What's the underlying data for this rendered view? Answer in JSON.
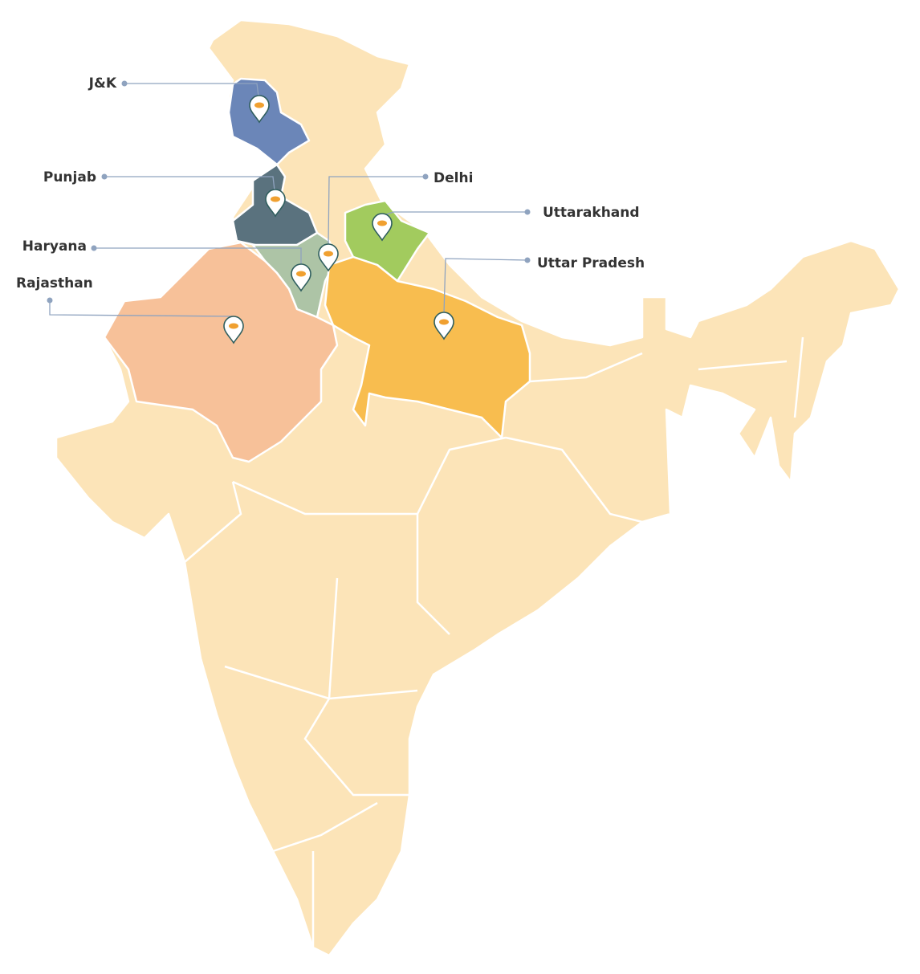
{
  "labels": {
    "jk": "J&K",
    "punjab": "Punjab",
    "delhi": "Delhi",
    "uttarakhand": "Uttarakhand",
    "haryana": "Haryana",
    "uttar_pradesh": "Uttar Pradesh",
    "rajasthan": "Rajasthan"
  }
}
